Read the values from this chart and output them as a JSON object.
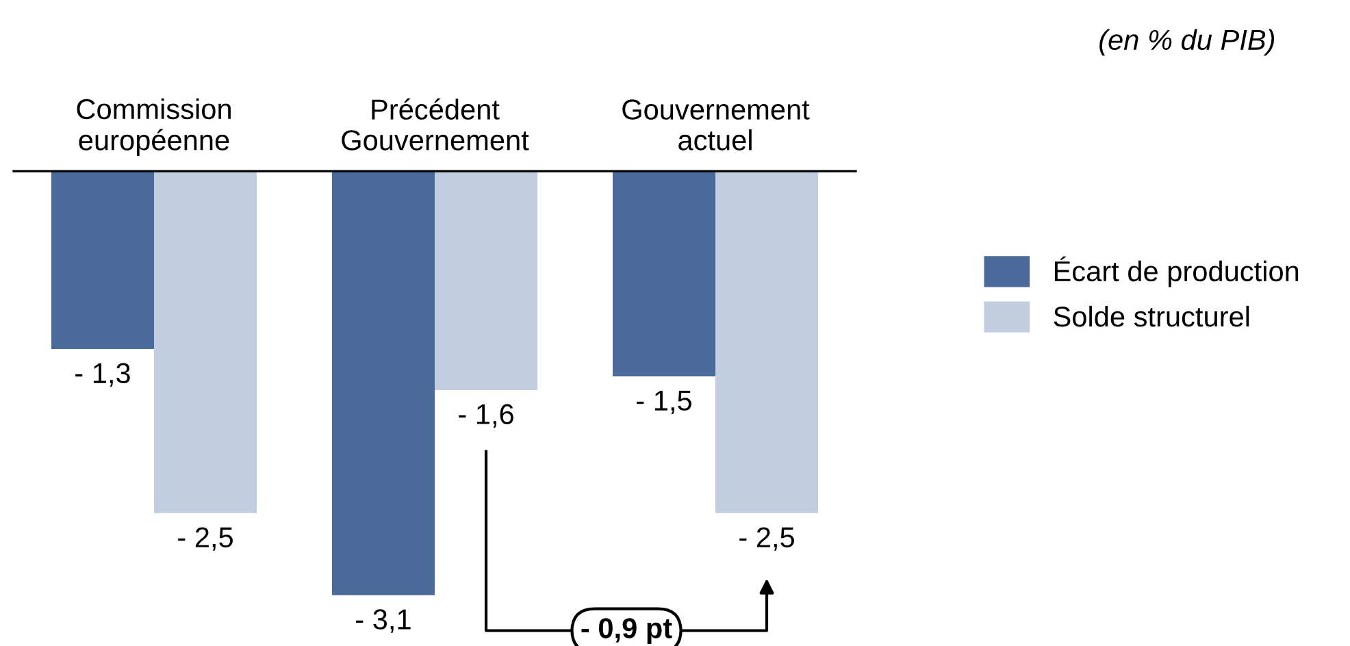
{
  "chart_data": {
    "type": "bar",
    "subtitle": "(en % du PIB)",
    "categories": [
      "Commission\neuropéenne",
      "Précédent\nGouvernement",
      "Gouvernement\nactuel"
    ],
    "series": [
      {
        "name": "Écart de production",
        "color": "#4a6a9a",
        "values": [
          -1.3,
          -3.1,
          -1.5
        ],
        "value_labels": [
          "- 1,3",
          "- 3,1",
          "- 1,5"
        ]
      },
      {
        "name": "Solde structurel",
        "color": "#c3cde0",
        "values": [
          -2.5,
          -1.6,
          -2.5
        ],
        "value_labels": [
          "- 2,5",
          "- 1,6",
          "- 2,5"
        ]
      }
    ],
    "annotations": [
      "- 0,9 pt"
    ],
    "legend": "right",
    "grid": false
  }
}
